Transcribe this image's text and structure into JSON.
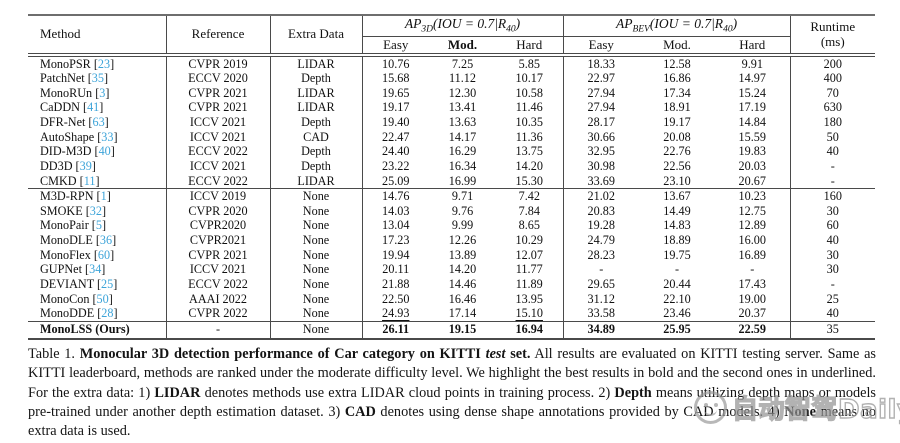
{
  "table": {
    "header": {
      "method": "Method",
      "reference": "Reference",
      "extra_data": "Extra Data",
      "ap3d_title": "AP_{3D}(IOU = 0.7|R_{40})",
      "apbev_title": "AP_{BEV}(IOU = 0.7|R_{40})",
      "sub3d": [
        "Easy",
        "Mod.",
        "Hard"
      ],
      "subbev": [
        "Easy",
        "Mod.",
        "Hard"
      ],
      "runtime_line1": "Runtime",
      "runtime_line2": "(ms)"
    },
    "colors": {
      "citation": "#3da4d9",
      "rule": "#4a4a4a"
    },
    "rows": [
      {
        "method": "MonoPSR",
        "cite": "23",
        "reference": "CVPR 2019",
        "extra": "LIDAR",
        "values": [
          "10.76",
          "7.25",
          "5.85",
          "18.33",
          "12.58",
          "9.91"
        ],
        "runtime": "200",
        "section": 1
      },
      {
        "method": "PatchNet",
        "cite": "35",
        "reference": "ECCV 2020",
        "extra": "Depth",
        "values": [
          "15.68",
          "11.12",
          "10.17",
          "22.97",
          "16.86",
          "14.97"
        ],
        "runtime": "400",
        "section": 1
      },
      {
        "method": "MonoRUn",
        "cite": "3",
        "reference": "CVPR 2021",
        "extra": "LIDAR",
        "values": [
          "19.65",
          "12.30",
          "10.58",
          "27.94",
          "17.34",
          "15.24"
        ],
        "runtime": "70",
        "section": 1
      },
      {
        "method": "CaDDN",
        "cite": "41",
        "reference": "CVPR 2021",
        "extra": "LIDAR",
        "values": [
          "19.17",
          "13.41",
          "11.46",
          "27.94",
          "18.91",
          "17.19"
        ],
        "runtime": "630",
        "section": 1
      },
      {
        "method": "DFR-Net",
        "cite": "63",
        "reference": "ICCV 2021",
        "extra": "Depth",
        "values": [
          "19.40",
          "13.63",
          "10.35",
          "28.17",
          "19.17",
          "14.84"
        ],
        "runtime": "180",
        "section": 1
      },
      {
        "method": "AutoShape",
        "cite": "33",
        "reference": "ICCV 2021",
        "extra": "CAD",
        "values": [
          "22.47",
          "14.17",
          "11.36",
          "30.66",
          "20.08",
          "15.59"
        ],
        "runtime": "50",
        "section": 1
      },
      {
        "method": "DID-M3D",
        "cite": "40",
        "reference": "ECCV 2022",
        "extra": "Depth",
        "values": [
          "24.40",
          "16.29",
          "13.75",
          "32.95",
          "22.76",
          "19.83"
        ],
        "runtime": "40",
        "section": 1
      },
      {
        "method": "DD3D",
        "cite": "39",
        "reference": "ICCV 2021",
        "extra": "Depth",
        "values": [
          "23.22",
          "16.34",
          "14.20",
          "30.98",
          "22.56",
          "20.03"
        ],
        "runtime": "-",
        "section": 1
      },
      {
        "method": "CMKD",
        "cite": "11",
        "reference": "ECCV 2022",
        "extra": "LIDAR",
        "values": [
          "25.09",
          "16.99",
          "15.30",
          "33.69",
          "23.10",
          "20.67"
        ],
        "runtime": "-",
        "section": 1
      },
      {
        "method": "M3D-RPN",
        "cite": "1",
        "reference": "ICCV 2019",
        "extra": "None",
        "values": [
          "14.76",
          "9.71",
          "7.42",
          "21.02",
          "13.67",
          "10.23"
        ],
        "runtime": "160",
        "section": 2
      },
      {
        "method": "SMOKE",
        "cite": "32",
        "reference": "CVPR 2020",
        "extra": "None",
        "values": [
          "14.03",
          "9.76",
          "7.84",
          "20.83",
          "14.49",
          "12.75"
        ],
        "runtime": "30",
        "section": 2
      },
      {
        "method": "MonoPair",
        "cite": "5",
        "reference": "CVPR2020",
        "extra": "None",
        "values": [
          "13.04",
          "9.99",
          "8.65",
          "19.28",
          "14.83",
          "12.89"
        ],
        "runtime": "60",
        "section": 2
      },
      {
        "method": "MonoDLE",
        "cite": "36",
        "reference": "CVPR2021",
        "extra": "None",
        "values": [
          "17.23",
          "12.26",
          "10.29",
          "24.79",
          "18.89",
          "16.00"
        ],
        "runtime": "40",
        "section": 2
      },
      {
        "method": "MonoFlex",
        "cite": "60",
        "reference": "CVPR 2021",
        "extra": "None",
        "values": [
          "19.94",
          "13.89",
          "12.07",
          "28.23",
          "19.75",
          "16.89"
        ],
        "runtime": "30",
        "section": 2
      },
      {
        "method": "GUPNet",
        "cite": "34",
        "reference": "ICCV 2021",
        "extra": "None",
        "values": [
          "20.11",
          "14.20",
          "11.77",
          "-",
          "-",
          "-"
        ],
        "runtime": "30",
        "section": 2
      },
      {
        "method": "DEVIANT",
        "cite": "25",
        "reference": "ECCV 2022",
        "extra": "None",
        "values": [
          "21.88",
          "14.46",
          "11.89",
          "29.65",
          "20.44",
          "17.43"
        ],
        "runtime": "-",
        "section": 2
      },
      {
        "method": "MonoCon",
        "cite": "50",
        "reference": "AAAI 2022",
        "extra": "None",
        "values": [
          "22.50",
          "16.46",
          "13.95",
          "31.12",
          "22.10",
          "19.00"
        ],
        "runtime": "25",
        "section": 2
      },
      {
        "method": "MonoDDE",
        "cite": "28",
        "reference": "CVPR 2022",
        "extra": "None",
        "values": [
          "24.93",
          "17.14",
          "15.10",
          "33.58",
          "23.46",
          "20.37"
        ],
        "runtime": "40",
        "section": 2,
        "underline": [
          0,
          2
        ]
      },
      {
        "method": "MonoLSS (Ours)",
        "cite": null,
        "reference": "-",
        "extra": "None",
        "values": [
          "26.11",
          "19.15",
          "16.94",
          "34.89",
          "25.95",
          "22.59"
        ],
        "runtime": "35",
        "section": 3,
        "bold": true,
        "ours": true
      }
    ]
  },
  "caption": {
    "segments": [
      {
        "t": "Table 1.  ",
        "b": false
      },
      {
        "t": "Monocular 3D detection performance of Car category on KITTI ",
        "b": true
      },
      {
        "t": "test",
        "b": true,
        "i": true
      },
      {
        "t": " set.",
        "b": true
      },
      {
        "t": "  All results are evaluated on KITTI testing server. Same as KITTI leaderboard, methods are ranked under the moderate difficulty level.  We highlight the best results in bold and the second ones in underlined.  For the extra data:  1) ",
        "b": false
      },
      {
        "t": "LIDAR",
        "b": true
      },
      {
        "t": " denotes methods use extra LIDAR cloud points in training process.  2) ",
        "b": false
      },
      {
        "t": "Depth",
        "b": true
      },
      {
        "t": " means utilizing depth maps or models pre-trained under another depth estimation dataset.  3) ",
        "b": false
      },
      {
        "t": "CAD",
        "b": true
      },
      {
        "t": " denotes using dense shape annotations provided by CAD models.  4) ",
        "b": false
      },
      {
        "t": "None",
        "b": true
      },
      {
        "t": " means no extra data is used.",
        "b": false
      }
    ]
  },
  "watermark": {
    "text": "自动智驾Daily",
    "logo": "smiley-circle-logo"
  }
}
